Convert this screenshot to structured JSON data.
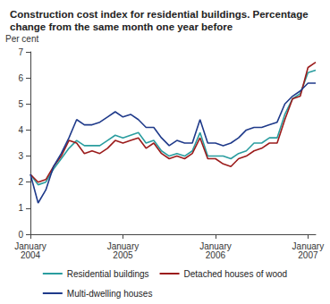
{
  "chart_data": {
    "type": "line",
    "title": "Construction cost index for residential buildings. Percentage change from the same month one year before",
    "y_label": "Per cent",
    "categories": [
      "January 2004",
      null,
      null,
      null,
      null,
      null,
      null,
      null,
      null,
      null,
      null,
      null,
      "January 2005",
      null,
      null,
      null,
      null,
      null,
      null,
      null,
      null,
      null,
      null,
      null,
      "January 2006",
      null,
      null,
      null,
      null,
      null,
      null,
      null,
      null,
      null,
      null,
      null,
      "January 2007",
      null
    ],
    "series": [
      {
        "name": "Residential buildings",
        "color": "#2a9d9f",
        "values": [
          2.3,
          1.9,
          2.0,
          2.5,
          2.9,
          3.3,
          3.6,
          3.4,
          3.4,
          3.4,
          3.6,
          3.8,
          3.7,
          3.8,
          3.9,
          3.5,
          3.6,
          3.2,
          3.0,
          3.1,
          3.0,
          3.2,
          3.9,
          3.0,
          3.0,
          3.0,
          2.9,
          3.1,
          3.2,
          3.5,
          3.5,
          3.7,
          3.7,
          4.6,
          5.2,
          5.4,
          6.2,
          6.3
        ]
      },
      {
        "name": "Detached houses of wood",
        "color": "#9b1b1b",
        "values": [
          2.3,
          2.0,
          2.1,
          2.6,
          3.0,
          3.6,
          3.5,
          3.1,
          3.2,
          3.1,
          3.3,
          3.6,
          3.5,
          3.6,
          3.7,
          3.3,
          3.5,
          3.1,
          2.9,
          3.0,
          2.9,
          3.1,
          3.7,
          2.9,
          2.9,
          2.7,
          2.6,
          2.9,
          3.0,
          3.2,
          3.3,
          3.5,
          3.5,
          4.4,
          5.2,
          5.3,
          6.4,
          6.6
        ]
      },
      {
        "name": "Multi-dwelling houses",
        "color": "#1f3a8a",
        "values": [
          2.3,
          1.2,
          1.7,
          2.6,
          3.1,
          3.7,
          4.4,
          4.2,
          4.2,
          4.3,
          4.5,
          4.7,
          4.5,
          4.6,
          4.4,
          4.1,
          4.1,
          3.7,
          3.4,
          3.6,
          3.5,
          3.5,
          4.4,
          3.5,
          3.5,
          3.4,
          3.5,
          3.7,
          4.0,
          4.1,
          4.1,
          4.2,
          4.3,
          5.0,
          5.3,
          5.5,
          5.8,
          5.8
        ]
      }
    ],
    "ylim": [
      0,
      7
    ],
    "yticks": [
      0,
      1,
      2,
      3,
      4,
      5,
      6,
      7
    ],
    "grid": false,
    "legend": "bottom"
  }
}
